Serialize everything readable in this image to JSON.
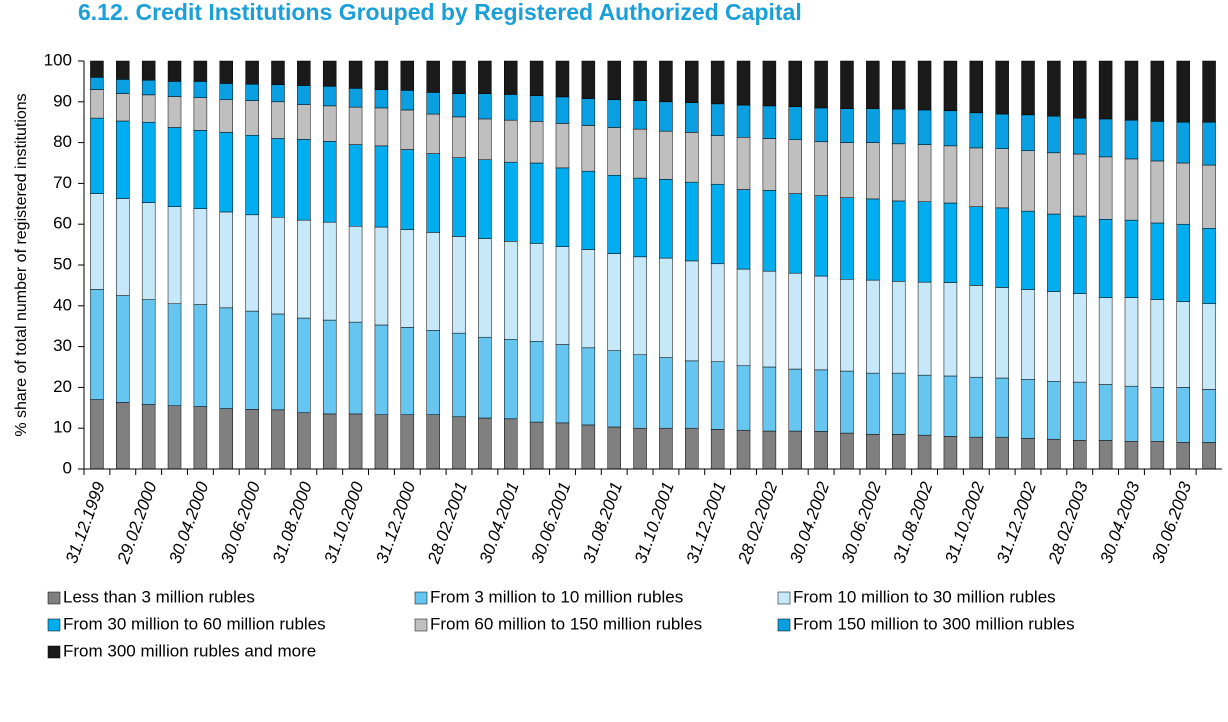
{
  "chart_data": {
    "type": "stacked_bar",
    "title": "6.12. Credit Institutions Grouped by Registered  Authorized Capital",
    "y_label": "% share of total number of registered institutions",
    "categories": [
      "31.12.1999",
      null,
      "29.02.2000",
      null,
      "30.04.2000",
      null,
      "30.06.2000",
      null,
      "31.08.2000",
      null,
      "31.10.2000",
      null,
      "31.12.2000",
      null,
      "28.02.2001",
      null,
      "30.04.2001",
      null,
      "30.06.2001",
      null,
      "31.08.2001",
      null,
      "31.10.2001",
      null,
      "31.12.2001",
      null,
      "28.02.2002",
      null,
      "30.04.2002",
      null,
      "30.06.2002",
      null,
      "31.08.2002",
      null,
      "31.10.2002",
      null,
      "31.12.2002",
      null,
      "28.02.2003",
      null,
      "30.04.2003",
      null,
      "30.06.2003",
      null
    ],
    "series": [
      {
        "name": "Less than 3 million rubles",
        "color": "#808080",
        "values": [
          17,
          16.3,
          15.8,
          15.5,
          15.3,
          14.8,
          14.6,
          14.5,
          13.8,
          13.5,
          13.5,
          13.3,
          13.3,
          13.3,
          12.8,
          12.5,
          12.3,
          11.5,
          11.3,
          10.8,
          10.3,
          10,
          10,
          10,
          9.7,
          9.5,
          9.3,
          9.3,
          9.2,
          8.8,
          8.5,
          8.5,
          8.3,
          8,
          7.8,
          7.8,
          7.5,
          7.3,
          7,
          7,
          6.8,
          6.8,
          6.5,
          6.5
        ]
      },
      {
        "name": "From 3 million to 10 million rubles",
        "color": "#66c6ef",
        "values": [
          27,
          26.2,
          25.7,
          25,
          25,
          24.7,
          24.1,
          23.5,
          23.2,
          23,
          22.5,
          22,
          21.4,
          20.7,
          20.5,
          19.8,
          19.5,
          19.8,
          19.2,
          18.9,
          18.7,
          18,
          17.3,
          16.5,
          16.6,
          15.8,
          15.7,
          15.2,
          15.1,
          15.2,
          15,
          15,
          14.7,
          14.8,
          14.7,
          14.5,
          14.5,
          14.2,
          14.3,
          13.7,
          13.5,
          13.2,
          13.5,
          13
        ]
      },
      {
        "name": "From 10 million to 30 million rubles",
        "color": "#c6e8f8",
        "values": [
          23.5,
          23.8,
          23.8,
          23.8,
          23.5,
          23.5,
          23.6,
          23.7,
          24,
          24,
          23.5,
          24,
          24,
          24,
          23.7,
          24.2,
          24,
          24,
          24,
          24.1,
          23.8,
          24,
          24.4,
          24.5,
          24,
          23.7,
          23.5,
          23.5,
          23,
          22.5,
          22.8,
          22.5,
          22.8,
          22.9,
          22.5,
          22.2,
          22,
          22,
          21.7,
          21.3,
          21.7,
          21.5,
          21,
          21
        ]
      },
      {
        "name": "From 30 million to 60 million rubles",
        "color": "#00aeef",
        "values": [
          18.5,
          19,
          19.7,
          19.4,
          19.2,
          19.5,
          19.5,
          19.3,
          19.8,
          19.8,
          20,
          19.9,
          19.6,
          19.3,
          19.3,
          19.3,
          19.4,
          19.7,
          19.3,
          19.2,
          19.2,
          19.3,
          19.3,
          19.3,
          19.5,
          19.5,
          19.8,
          19.5,
          19.7,
          20,
          19.9,
          19.7,
          19.7,
          19.5,
          19.3,
          19.5,
          19.2,
          19,
          19,
          19.2,
          19,
          18.8,
          19,
          18.5
        ]
      },
      {
        "name": "From 60 million to 150 million rubles",
        "color": "#bfbfbf",
        "values": [
          7,
          6.7,
          6.7,
          7.6,
          8,
          8,
          8.5,
          9,
          8.5,
          8.7,
          9.2,
          9.3,
          9.7,
          9.7,
          10,
          10,
          10.3,
          10.2,
          10.9,
          11.2,
          11.7,
          12,
          11.8,
          12.2,
          11.9,
          12.8,
          12.7,
          13.2,
          13.2,
          13.5,
          13.8,
          14,
          14,
          14,
          14.4,
          14.5,
          14.8,
          15,
          15.2,
          15.3,
          15,
          15.2,
          15,
          15.5
        ]
      },
      {
        "name": "From 150 million to 300 million rubles",
        "color": "#0a9fe0",
        "values": [
          3,
          3.5,
          3.6,
          3.7,
          4,
          4,
          4,
          4.2,
          4.7,
          4.8,
          4.6,
          4.5,
          4.8,
          5.3,
          5.7,
          6.2,
          6.3,
          6.3,
          6.5,
          6.6,
          6.8,
          7,
          7.2,
          7.3,
          7.8,
          7.9,
          8,
          8.1,
          8.3,
          8.3,
          8.3,
          8.5,
          8.5,
          8.6,
          8.6,
          8.5,
          8.8,
          9,
          8.8,
          9.3,
          9.5,
          9.7,
          10,
          10.5
        ]
      },
      {
        "name": "From 300 million rubles and more",
        "color": "#1a1a1a",
        "values": [
          4,
          4.5,
          4.7,
          5,
          5,
          5.5,
          5.7,
          5.8,
          6,
          6.2,
          6.7,
          7,
          7.2,
          7.7,
          8,
          8,
          8.2,
          8.5,
          8.8,
          9.2,
          9.5,
          9.7,
          10,
          10.2,
          10.5,
          10.8,
          11,
          11.2,
          11.5,
          11.7,
          11.7,
          11.8,
          12,
          12.2,
          12.7,
          13,
          13.2,
          13.5,
          14,
          14.2,
          14.5,
          14.8,
          15,
          15
        ]
      }
    ],
    "ylim": [
      0,
      100
    ],
    "yticks": [
      0,
      10,
      20,
      30,
      40,
      50,
      60,
      70,
      80,
      90,
      100
    ],
    "legend": "bottom"
  }
}
